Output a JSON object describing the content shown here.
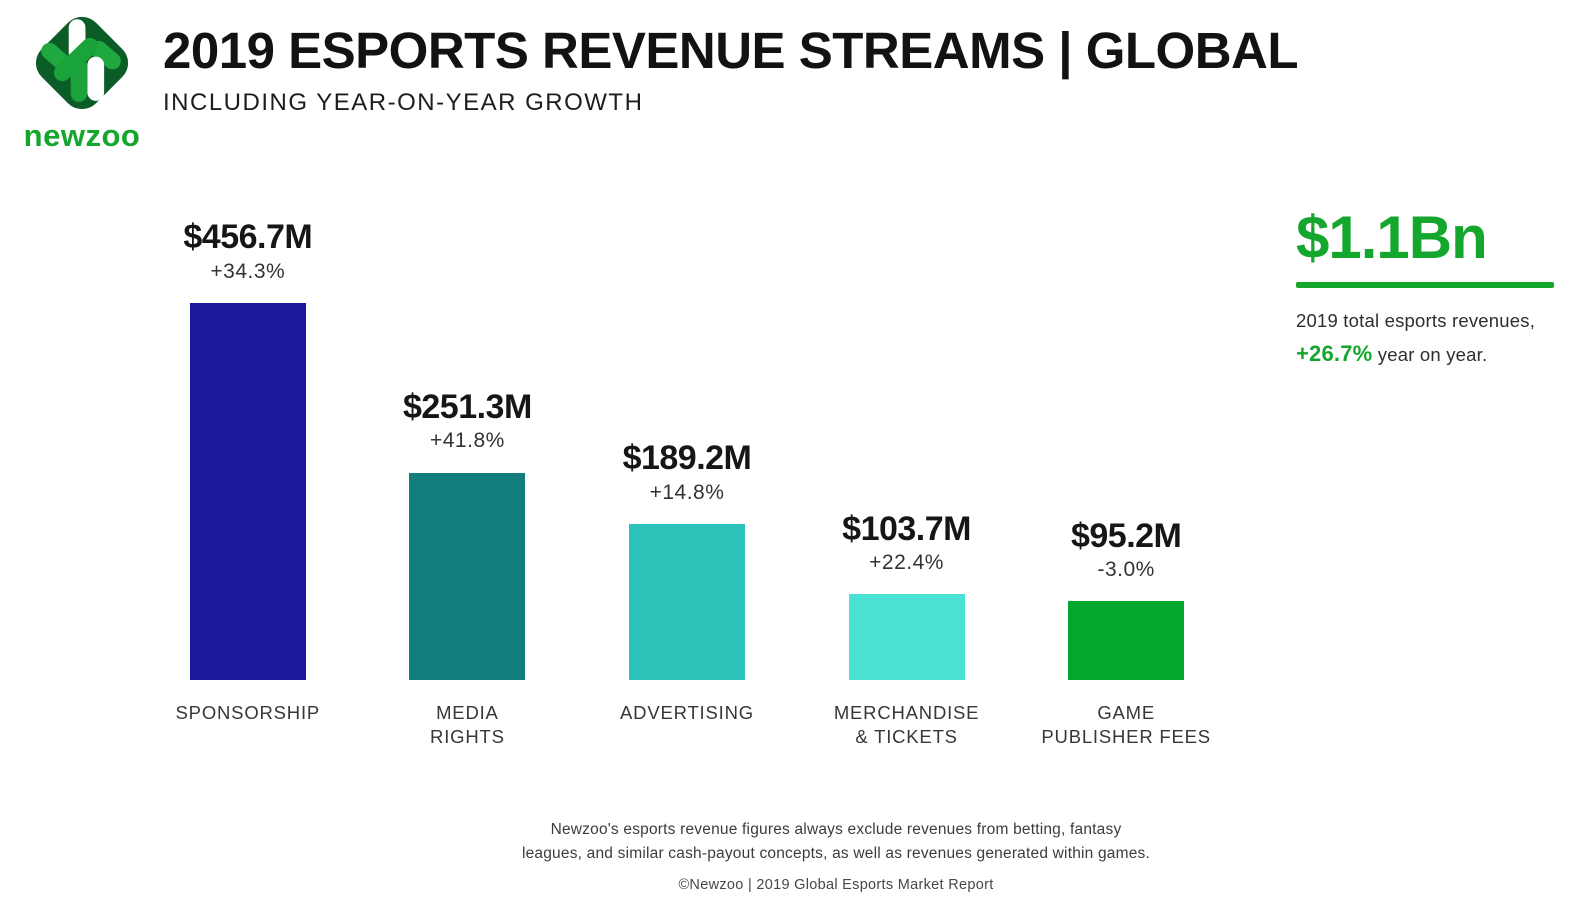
{
  "header": {
    "logo_text": "newzoo",
    "title": "2019 ESPORTS REVENUE STREAMS | GLOBAL",
    "subtitle": "INCLUDING YEAR-ON-YEAR GROWTH"
  },
  "chart_data": {
    "type": "bar",
    "title": "2019 Esports Revenue Streams | Global",
    "subtitle": "Including year-on-year growth",
    "unit": "USD millions",
    "categories": [
      "SPONSORSHIP",
      "MEDIA RIGHTS",
      "ADVERTISING",
      "MERCHANDISE & TICKETS",
      "GAME PUBLISHER FEES"
    ],
    "category_lines": [
      [
        "SPONSORSHIP"
      ],
      [
        "MEDIA",
        "RIGHTS"
      ],
      [
        "ADVERTISING"
      ],
      [
        "MERCHANDISE",
        "& TICKETS"
      ],
      [
        "GAME",
        "PUBLISHER FEES"
      ]
    ],
    "values": [
      456.7,
      251.3,
      189.2,
      103.7,
      95.2
    ],
    "value_labels": [
      "$456.7M",
      "$251.3M",
      "$189.2M",
      "$103.7M",
      "$95.2M"
    ],
    "yoy_growth": [
      "+34.3%",
      "+41.8%",
      "+14.8%",
      "+22.4%",
      "-3.0%"
    ],
    "bar_colors": [
      "#1b189e",
      "#137f7c",
      "#2cc4ba",
      "#49e1d4",
      "#03a72e"
    ],
    "ylim": [
      0,
      460
    ],
    "grid": false,
    "legend": false
  },
  "summary": {
    "total": "$1.1Bn",
    "description": "2019 total esports revenues,",
    "growth": "+26.7%",
    "growth_suffix": "year on year."
  },
  "footer": {
    "note_line1": "Newzoo's esports revenue figures always exclude revenues from betting, fantasy",
    "note_line2": "leagues, and similar cash-payout concepts, as well as revenues generated within games.",
    "copyright": "©Newzoo | 2019 Global Esports Market Report"
  },
  "colors": {
    "accent_green": "#15a62e",
    "logo_dark_green": "#0b5c26",
    "logo_bright_green": "#1aa33b",
    "bar_navy": "#1b189e",
    "bar_teal": "#137f7c",
    "bar_turquoise": "#2cc4ba",
    "bar_light_turquoise": "#49e1d4",
    "bar_green": "#03a72e"
  }
}
